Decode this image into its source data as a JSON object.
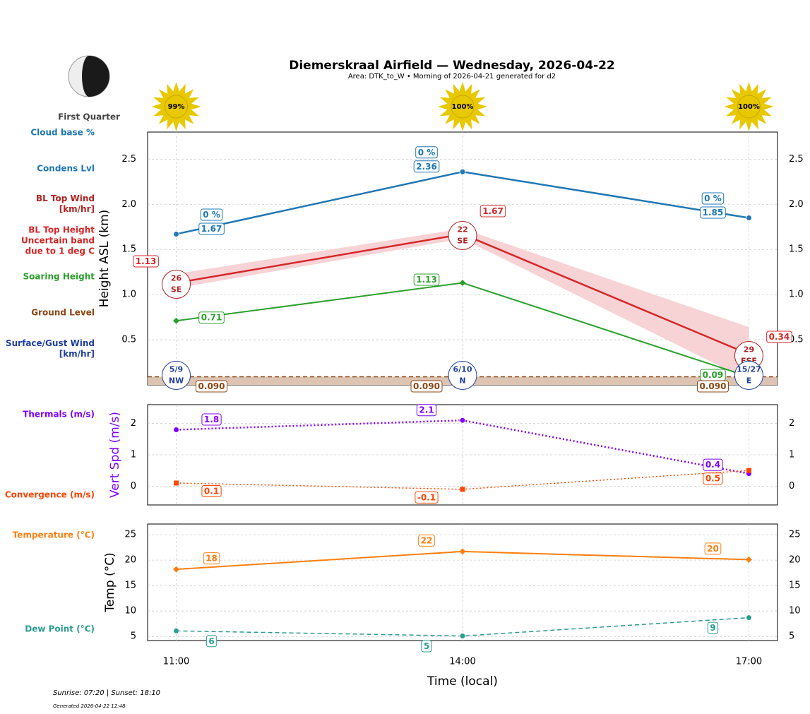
{
  "header": {
    "title": "Diemerskraal Airfield — Wednesday, 2026-04-22",
    "subtitle": "Area: DTK_to_W • Morning of 2026-04-21 generated for d2",
    "moon_phase": "First Quarter",
    "sunshine": {
      "x": [
        11,
        14,
        17
      ],
      "values": [
        99,
        100,
        100
      ],
      "value_labels": [
        "99%",
        "100%",
        "100%"
      ],
      "color": "#e8c800"
    }
  },
  "chart_data": [
    {
      "type": "line",
      "ylabel": "Height ASL (km)",
      "x": [
        11,
        14,
        17
      ],
      "xlim": [
        10.7,
        17.3
      ],
      "xticks": [
        11,
        14,
        17
      ],
      "ylim": [
        0,
        2.8
      ],
      "yticks": [
        0.5,
        {
          "value": 1,
          "label": "1.0"
        },
        1.5,
        {
          "value": 2,
          "label": "2.0"
        },
        2.5
      ],
      "grid": true,
      "series": [
        {
          "name": "Cloud base %",
          "kind": "labels",
          "color": "#1f77b4",
          "values": [
            0,
            0,
            0
          ],
          "value_labels": [
            "0 %",
            "0 %",
            "0 %"
          ]
        },
        {
          "name": "Condens Lvl",
          "color": "#1f77b4",
          "values": [
            1.67,
            2.36,
            1.85
          ],
          "marker": "circle",
          "linestyle": "solid",
          "linewidth": 2.5
        },
        {
          "name": "BL Top Wind [km/hr]",
          "kind": "wind",
          "color": "#b22222",
          "values": [
            26,
            22,
            29
          ],
          "directions": [
            "SE",
            "SE",
            "ESE"
          ]
        },
        {
          "name": "BL Top Height Uncertain band due to 1 deg C",
          "color": "#d62728",
          "values": [
            1.13,
            1.67,
            0.34
          ],
          "linestyle": "solid",
          "linewidth": 2.5,
          "band_low": [
            1.07,
            1.62,
            0.05
          ],
          "band_high": [
            1.23,
            1.73,
            0.64
          ],
          "band_color": "#f7d3d6"
        },
        {
          "name": "Soaring Height",
          "color": "#2ca02c",
          "values": [
            0.71,
            1.13,
            0.09
          ],
          "marker": "diamond",
          "linestyle": "solid",
          "linewidth": 2
        },
        {
          "name": "Ground Level",
          "color": "#8b4513",
          "values": [
            0.09,
            0.09,
            0.09
          ],
          "value_labels": [
            "0.090",
            "0.090",
            "0.090"
          ],
          "linestyle": "dashed",
          "linewidth": 1.5,
          "fill": "#dcc3b2"
        },
        {
          "name": "Surface/Gust Wind [km/hr]",
          "kind": "wind",
          "color": "#1f3fa0",
          "values": [
            5,
            6,
            15
          ],
          "gust": [
            9,
            10,
            27
          ],
          "value_labels": [
            "5/9",
            "6/10",
            "15/27"
          ],
          "directions": [
            "NW",
            "N",
            "E"
          ]
        }
      ]
    },
    {
      "type": "line",
      "ylabel": "Vert Spd (m/s)",
      "ylabel_color": "#7f00ff",
      "x": [
        11,
        14,
        17
      ],
      "xlim": [
        10.7,
        17.3
      ],
      "xticks": [
        11,
        14,
        17
      ],
      "ylim": [
        -0.6,
        2.6
      ],
      "yticks": [
        0,
        1,
        2
      ],
      "grid": true,
      "series": [
        {
          "name": "Thermals (m/s)",
          "color": "#7f00ff",
          "values": [
            1.8,
            2.1,
            0.4
          ],
          "marker": "circle",
          "linestyle": "dotted",
          "linewidth": 2.5
        },
        {
          "name": "Convergence (m/s)",
          "color": "#ff4500",
          "values": [
            0.1,
            -0.1,
            0.5
          ],
          "marker": "square",
          "linestyle": "dotted",
          "linewidth": 1.5
        }
      ]
    },
    {
      "type": "line",
      "ylabel": "Temp (°C)",
      "xlabel": "Time (local)",
      "x": [
        11,
        14,
        17
      ],
      "xlim": [
        10.7,
        17.3
      ],
      "xticks": [
        {
          "value": 11,
          "label": "11:00"
        },
        {
          "value": 14,
          "label": "14:00"
        },
        {
          "value": 17,
          "label": "17:00"
        }
      ],
      "ylim": [
        4.2,
        27.1
      ],
      "yticks": [
        5,
        10,
        15,
        20,
        25
      ],
      "grid": true,
      "series": [
        {
          "name": "Temperature (°C)",
          "color": "#ff7f0e",
          "values": [
            18.2,
            21.7,
            20.1
          ],
          "value_labels": [
            "18",
            "22",
            "20"
          ],
          "marker": "diamond",
          "linestyle": "solid",
          "linewidth": 2
        },
        {
          "name": "Dew Point (°C)",
          "color": "#2a9d8f",
          "values": [
            6.1,
            5.1,
            8.7
          ],
          "value_labels": [
            "6",
            "5",
            "9"
          ],
          "marker": "circle",
          "linestyle": "dashed",
          "linewidth": 1.5
        }
      ]
    }
  ],
  "footer": {
    "sun_times": "Sunrise: 07:20 | Sunset: 18:10",
    "generated": "Generated 2026-04-22 12:48"
  }
}
